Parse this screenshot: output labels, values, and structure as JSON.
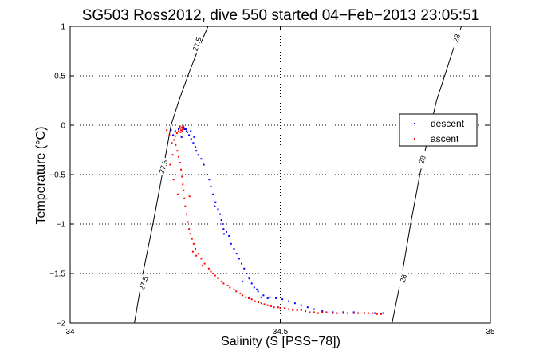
{
  "chart_data": {
    "type": "scatter",
    "title": "SG503 Ross2012, dive 550 started 04−Feb−2013 23:05:51",
    "xlabel": "Salinity (S [PSS−78])",
    "ylabel": "Temperature (°C)",
    "xlim": [
      34,
      35
    ],
    "ylim": [
      -2,
      1
    ],
    "xticks": [
      34,
      34.5,
      35
    ],
    "xtick_labels": [
      "34",
      "34.5",
      "35"
    ],
    "yticks": [
      -2,
      -1.5,
      -1,
      -0.5,
      0,
      0.5,
      1
    ],
    "ytick_labels": [
      "−2",
      "−1.5",
      "−1",
      "−0.5",
      "0",
      "0.5",
      "1"
    ],
    "grid": true,
    "legend_position": "right",
    "contours": [
      {
        "label": "27.5",
        "points": [
          [
            34.153,
            -2
          ],
          [
            34.173,
            -1.5
          ],
          [
            34.197,
            -1.0
          ],
          [
            34.219,
            -0.5
          ],
          [
            34.24,
            0.0
          ],
          [
            34.259,
            0.25
          ],
          [
            34.28,
            0.5
          ],
          [
            34.303,
            0.75
          ],
          [
            34.328,
            1.0
          ]
        ],
        "labels_at": [
          [
            34.175,
            -1.6
          ],
          [
            34.222,
            -0.42
          ],
          [
            34.302,
            0.82
          ]
        ]
      },
      {
        "label": "28",
        "points": [
          [
            34.766,
            -2
          ],
          [
            34.79,
            -1.5
          ],
          [
            34.81,
            -1.0
          ],
          [
            34.832,
            -0.5
          ],
          [
            34.858,
            0.0
          ],
          [
            34.872,
            0.25
          ],
          [
            34.891,
            0.5
          ],
          [
            34.91,
            0.75
          ],
          [
            34.931,
            1.0
          ]
        ],
        "labels_at": [
          [
            34.793,
            -1.55
          ],
          [
            34.838,
            -0.35
          ],
          [
            34.92,
            0.88
          ]
        ]
      }
    ],
    "series": [
      {
        "name": "descent",
        "color": "#0000ff",
        "points": [
          [
            34.27,
            -0.02
          ],
          [
            34.275,
            -0.04
          ],
          [
            34.279,
            -0.07
          ],
          [
            34.283,
            -0.1
          ],
          [
            34.288,
            -0.14
          ],
          [
            34.293,
            -0.18
          ],
          [
            34.298,
            -0.22
          ],
          [
            34.272,
            -0.04
          ],
          [
            34.277,
            -0.06
          ],
          [
            34.295,
            -0.12
          ],
          [
            34.305,
            -0.3
          ],
          [
            34.312,
            -0.34
          ],
          [
            34.318,
            -0.4
          ],
          [
            34.326,
            -0.5
          ],
          [
            34.331,
            -0.55
          ],
          [
            34.335,
            -0.62
          ],
          [
            34.34,
            -0.7
          ],
          [
            34.346,
            -0.78
          ],
          [
            34.352,
            -0.85
          ],
          [
            34.357,
            -0.9
          ],
          [
            34.36,
            -0.96
          ],
          [
            34.365,
            -1.05
          ],
          [
            34.372,
            -1.08
          ],
          [
            34.378,
            -1.12
          ],
          [
            34.383,
            -1.2
          ],
          [
            34.39,
            -1.25
          ],
          [
            34.396,
            -1.3
          ],
          [
            34.402,
            -1.35
          ],
          [
            34.408,
            -1.4
          ],
          [
            34.414,
            -1.45
          ],
          [
            34.42,
            -1.5
          ],
          [
            34.426,
            -1.55
          ],
          [
            34.432,
            -1.6
          ],
          [
            34.438,
            -1.64
          ],
          [
            34.447,
            -1.68
          ],
          [
            34.46,
            -1.72
          ],
          [
            34.475,
            -1.74
          ],
          [
            34.49,
            -1.75
          ],
          [
            34.505,
            -1.76
          ],
          [
            34.52,
            -1.78
          ],
          [
            34.535,
            -1.8
          ],
          [
            34.55,
            -1.82
          ],
          [
            34.565,
            -1.84
          ],
          [
            34.58,
            -1.86
          ],
          [
            34.6,
            -1.88
          ],
          [
            34.625,
            -1.89
          ],
          [
            34.65,
            -1.89
          ],
          [
            34.675,
            -1.89
          ],
          [
            34.7,
            -1.9
          ],
          [
            34.725,
            -1.9
          ],
          [
            34.745,
            -1.9
          ],
          [
            34.24,
            -0.05
          ],
          [
            34.25,
            -0.06
          ],
          [
            34.258,
            -0.04
          ],
          [
            34.245,
            -0.1
          ],
          [
            34.265,
            -0.12
          ],
          [
            34.287,
            -0.06
          ],
          [
            34.3,
            -0.26
          ],
          [
            34.344,
            -0.82
          ],
          [
            34.362,
            -1.0
          ],
          [
            34.366,
            -1.1
          ],
          [
            34.41,
            -1.58
          ],
          [
            34.444,
            -1.66
          ],
          [
            34.455,
            -1.74
          ],
          [
            34.47,
            -1.75
          ]
        ]
      },
      {
        "name": "ascent",
        "color": "#ff0000",
        "points": [
          [
            34.262,
            -0.03
          ],
          [
            34.266,
            -0.02
          ],
          [
            34.268,
            -0.04
          ],
          [
            34.264,
            -0.05
          ],
          [
            34.27,
            -0.03
          ],
          [
            34.258,
            -0.06
          ],
          [
            34.254,
            -0.08
          ],
          [
            34.25,
            -0.11
          ],
          [
            34.247,
            -0.15
          ],
          [
            34.251,
            -0.2
          ],
          [
            34.255,
            -0.26
          ],
          [
            34.258,
            -0.32
          ],
          [
            34.262,
            -0.38
          ],
          [
            34.264,
            -0.45
          ],
          [
            34.266,
            -0.52
          ],
          [
            34.268,
            -0.6
          ],
          [
            34.27,
            -0.66
          ],
          [
            34.272,
            -0.74
          ],
          [
            34.274,
            -0.82
          ],
          [
            34.277,
            -0.9
          ],
          [
            34.28,
            -0.98
          ],
          [
            34.283,
            -1.05
          ],
          [
            34.286,
            -1.1
          ],
          [
            34.29,
            -1.15
          ],
          [
            34.294,
            -1.2
          ],
          [
            34.298,
            -1.25
          ],
          [
            34.305,
            -1.3
          ],
          [
            34.312,
            -1.35
          ],
          [
            34.32,
            -1.4
          ],
          [
            34.33,
            -1.45
          ],
          [
            34.34,
            -1.5
          ],
          [
            34.352,
            -1.55
          ],
          [
            34.365,
            -1.6
          ],
          [
            34.38,
            -1.64
          ],
          [
            34.395,
            -1.68
          ],
          [
            34.41,
            -1.72
          ],
          [
            34.425,
            -1.75
          ],
          [
            34.44,
            -1.78
          ],
          [
            34.455,
            -1.8
          ],
          [
            34.47,
            -1.82
          ],
          [
            34.485,
            -1.84
          ],
          [
            34.5,
            -1.85
          ],
          [
            34.52,
            -1.86
          ],
          [
            34.54,
            -1.87
          ],
          [
            34.56,
            -1.88
          ],
          [
            34.58,
            -1.89
          ],
          [
            34.6,
            -1.89
          ],
          [
            34.625,
            -1.9
          ],
          [
            34.65,
            -1.9
          ],
          [
            34.675,
            -1.9
          ],
          [
            34.7,
            -1.9
          ],
          [
            34.72,
            -1.9
          ],
          [
            34.74,
            -1.91
          ],
          [
            34.23,
            -0.05
          ],
          [
            34.236,
            -0.1
          ],
          [
            34.242,
            -0.18
          ],
          [
            34.244,
            -0.3
          ],
          [
            34.238,
            -0.4
          ],
          [
            34.246,
            -0.55
          ],
          [
            34.256,
            -0.7
          ],
          [
            34.284,
            -0.72
          ],
          [
            34.292,
            -1.28
          ],
          [
            34.3,
            -1.32
          ],
          [
            34.315,
            -1.42
          ],
          [
            34.335,
            -1.48
          ],
          [
            34.345,
            -1.52
          ],
          [
            34.36,
            -1.58
          ],
          [
            34.375,
            -1.62
          ],
          [
            34.39,
            -1.66
          ],
          [
            34.405,
            -1.7
          ],
          [
            34.418,
            -1.74
          ],
          [
            34.432,
            -1.76
          ],
          [
            34.448,
            -1.79
          ],
          [
            34.462,
            -1.81
          ],
          [
            34.478,
            -1.83
          ],
          [
            34.495,
            -1.84
          ],
          [
            34.51,
            -1.85
          ],
          [
            34.53,
            -1.87
          ],
          [
            34.55,
            -1.87
          ],
          [
            34.57,
            -1.89
          ],
          [
            34.59,
            -1.9
          ],
          [
            34.61,
            -1.89
          ],
          [
            34.635,
            -1.9
          ],
          [
            34.66,
            -1.9
          ],
          [
            34.685,
            -1.9
          ],
          [
            34.71,
            -1.9
          ],
          [
            34.73,
            -1.91
          ],
          [
            34.261,
            -0.01
          ],
          [
            34.267,
            -0.06
          ],
          [
            34.269,
            -0.01
          ],
          [
            34.263,
            -0.07
          ],
          [
            34.26,
            -0.02
          ]
        ]
      }
    ]
  }
}
